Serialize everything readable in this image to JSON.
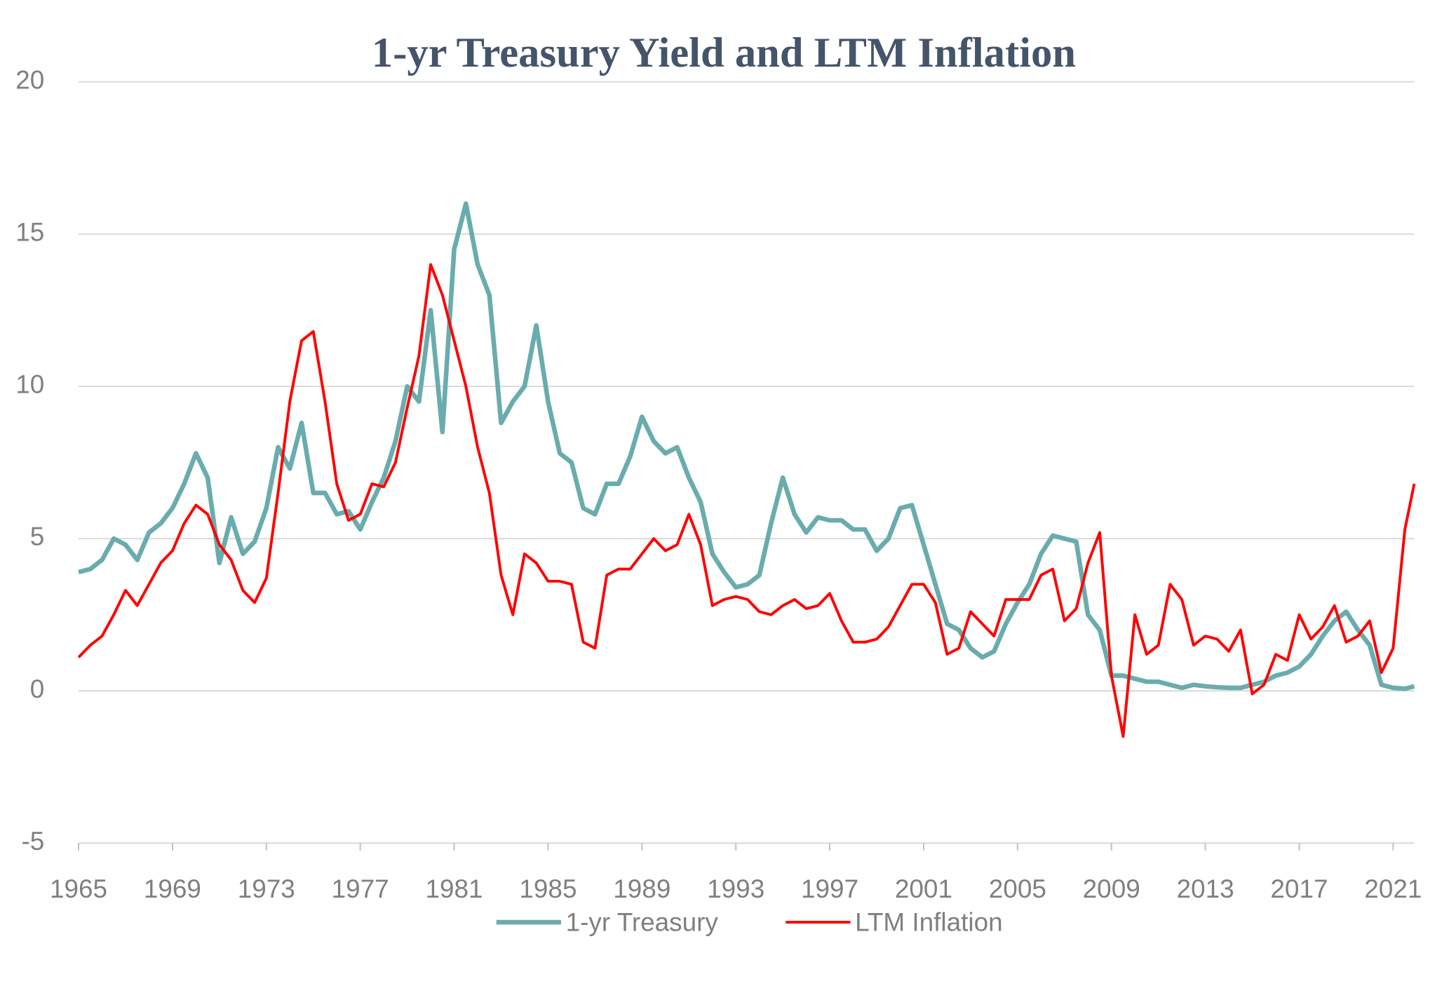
{
  "chart_data": {
    "type": "line",
    "title": "1-yr Treasury Yield and LTM Inflation",
    "x": [
      1965.0,
      1965.5,
      1966.0,
      1966.5,
      1967.0,
      1967.5,
      1968.0,
      1968.5,
      1969.0,
      1969.5,
      1970.0,
      1970.5,
      1971.0,
      1971.5,
      1972.0,
      1972.5,
      1973.0,
      1973.5,
      1974.0,
      1974.5,
      1975.0,
      1975.5,
      1976.0,
      1976.5,
      1977.0,
      1977.5,
      1978.0,
      1978.5,
      1979.0,
      1979.5,
      1980.0,
      1980.5,
      1981.0,
      1981.5,
      1982.0,
      1982.5,
      1983.0,
      1983.5,
      1984.0,
      1984.5,
      1985.0,
      1985.5,
      1986.0,
      1986.5,
      1987.0,
      1987.5,
      1988.0,
      1988.5,
      1989.0,
      1989.5,
      1990.0,
      1990.5,
      1991.0,
      1991.5,
      1992.0,
      1992.5,
      1993.0,
      1993.5,
      1994.0,
      1994.5,
      1995.0,
      1995.5,
      1996.0,
      1996.5,
      1997.0,
      1997.5,
      1998.0,
      1998.5,
      1999.0,
      1999.5,
      2000.0,
      2000.5,
      2001.0,
      2001.5,
      2002.0,
      2002.5,
      2003.0,
      2003.5,
      2004.0,
      2004.5,
      2005.0,
      2005.5,
      2006.0,
      2006.5,
      2007.0,
      2007.5,
      2008.0,
      2008.5,
      2009.0,
      2009.5,
      2010.0,
      2010.5,
      2011.0,
      2011.5,
      2012.0,
      2012.5,
      2013.0,
      2013.5,
      2014.0,
      2014.5,
      2015.0,
      2015.5,
      2016.0,
      2016.5,
      2017.0,
      2017.5,
      2018.0,
      2018.5,
      2019.0,
      2019.5,
      2020.0,
      2020.5,
      2021.0,
      2021.5,
      2021.9
    ],
    "series": [
      {
        "name": "1-yr Treasury",
        "color": "#6aacae",
        "width": 5,
        "values": [
          3.9,
          4.0,
          4.3,
          5.0,
          4.8,
          4.3,
          5.2,
          5.5,
          6.0,
          6.8,
          7.8,
          7.0,
          4.2,
          5.7,
          4.5,
          4.9,
          6.0,
          8.0,
          7.3,
          8.8,
          6.5,
          6.5,
          5.8,
          5.9,
          5.3,
          6.2,
          7.0,
          8.2,
          10.0,
          9.5,
          12.5,
          8.5,
          14.5,
          16.0,
          14.0,
          13.0,
          8.8,
          9.5,
          10.0,
          12.0,
          9.5,
          7.8,
          7.5,
          6.0,
          5.8,
          6.8,
          6.8,
          7.7,
          9.0,
          8.2,
          7.8,
          8.0,
          7.0,
          6.2,
          4.5,
          3.9,
          3.4,
          3.5,
          3.8,
          5.5,
          7.0,
          5.8,
          5.2,
          5.7,
          5.6,
          5.6,
          5.3,
          5.3,
          4.6,
          5.0,
          6.0,
          6.1,
          4.8,
          3.5,
          2.2,
          2.0,
          1.4,
          1.1,
          1.3,
          2.2,
          2.9,
          3.5,
          4.5,
          5.1,
          5.0,
          4.9,
          2.5,
          2.0,
          0.5,
          0.5,
          0.4,
          0.3,
          0.3,
          0.2,
          0.1,
          0.2,
          0.15,
          0.12,
          0.1,
          0.1,
          0.2,
          0.3,
          0.5,
          0.6,
          0.8,
          1.2,
          1.8,
          2.3,
          2.6,
          2.0,
          1.5,
          0.2,
          0.1,
          0.07,
          0.15
        ]
      },
      {
        "name": "LTM Inflation",
        "color": "#ff0000",
        "width": 3,
        "values": [
          1.1,
          1.5,
          1.8,
          2.5,
          3.3,
          2.8,
          3.5,
          4.2,
          4.6,
          5.5,
          6.1,
          5.8,
          4.8,
          4.3,
          3.3,
          2.9,
          3.7,
          6.5,
          9.5,
          11.5,
          11.8,
          9.5,
          6.8,
          5.6,
          5.8,
          6.8,
          6.7,
          7.5,
          9.3,
          11.0,
          14.0,
          13.0,
          11.5,
          10.0,
          8.0,
          6.5,
          3.8,
          2.5,
          4.5,
          4.2,
          3.6,
          3.6,
          3.5,
          1.6,
          1.4,
          3.8,
          4.0,
          4.0,
          4.5,
          5.0,
          4.6,
          4.8,
          5.8,
          4.8,
          2.8,
          3.0,
          3.1,
          3.0,
          2.6,
          2.5,
          2.8,
          3.0,
          2.7,
          2.8,
          3.2,
          2.3,
          1.6,
          1.6,
          1.7,
          2.1,
          2.8,
          3.5,
          3.5,
          2.9,
          1.2,
          1.4,
          2.6,
          2.2,
          1.8,
          3.0,
          3.0,
          3.0,
          3.8,
          4.0,
          2.3,
          2.7,
          4.2,
          5.2,
          0.5,
          -1.5,
          2.5,
          1.2,
          1.5,
          3.5,
          3.0,
          1.5,
          1.8,
          1.7,
          1.3,
          2.0,
          -0.1,
          0.2,
          1.2,
          1.0,
          2.5,
          1.7,
          2.1,
          2.8,
          1.6,
          1.8,
          2.3,
          0.6,
          1.4,
          5.3,
          6.8
        ]
      }
    ],
    "xlim": [
      1965,
      2021.9
    ],
    "xticks": [
      1965,
      1969,
      1973,
      1977,
      1981,
      1985,
      1989,
      1993,
      1997,
      2001,
      2005,
      2009,
      2013,
      2017,
      2021
    ],
    "ylim": [
      -5,
      20
    ],
    "yticks": [
      -5,
      0,
      5,
      10,
      15,
      20
    ],
    "grid": true
  }
}
